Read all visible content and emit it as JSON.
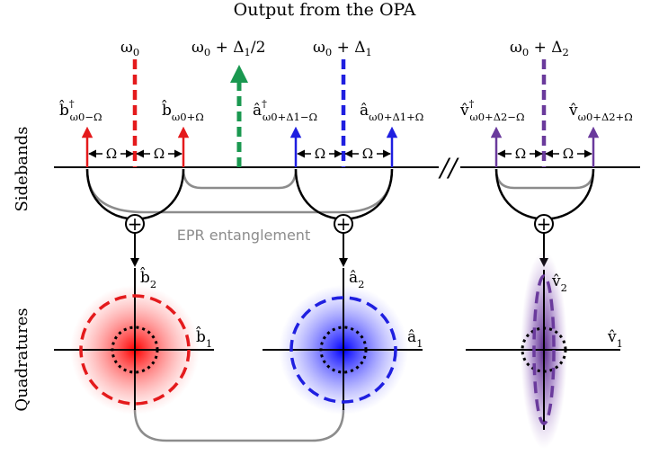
{
  "title": "Output from the OPA",
  "row_labels": {
    "sidebands": "Sidebands",
    "quadratures": "Quadratures"
  },
  "top_labels": {
    "w0": "ω",
    "w0_sub": "0",
    "mid_main": "ω",
    "mid_sub": "0",
    "mid_rest": " + Δ",
    "mid_sub2": "1",
    "mid_tail": "/2",
    "d1_main": "ω",
    "d1_sub": "0",
    "d1_rest": " + Δ",
    "d1_sub2": "1",
    "d2_main": "ω",
    "d2_sub": "0",
    "d2_rest": " + Δ",
    "d2_sub2": "2"
  },
  "operators": {
    "b_dag": {
      "symbol": "b̂",
      "sup": "†",
      "sub": "ω0−Ω"
    },
    "b": {
      "symbol": "b̂",
      "sup": "",
      "sub": "ω0+Ω"
    },
    "a_dag": {
      "symbol": "â",
      "sup": "†",
      "sub": "ω0+Δ1−Ω"
    },
    "a": {
      "symbol": "â",
      "sup": "",
      "sub": "ω0+Δ1+Ω"
    },
    "v_dag": {
      "symbol": "v̂",
      "sup": "†",
      "sub": "ω0+Δ2−Ω"
    },
    "v": {
      "symbol": "v̂",
      "sup": "",
      "sub": "ω0+Δ2+Ω"
    }
  },
  "omega_label": "Ω",
  "plus_symbol": "+",
  "break_symbol": "//",
  "epr_label": "EPR entanglement",
  "quadrature_axes": {
    "b2": {
      "symbol": "b̂",
      "sub": "2"
    },
    "b1": {
      "symbol": "b̂",
      "sub": "1"
    },
    "a2": {
      "symbol": "â",
      "sub": "2"
    },
    "a1": {
      "symbol": "â",
      "sub": "1"
    },
    "v2": {
      "symbol": "v̂",
      "sub": "2"
    },
    "v1": {
      "symbol": "v̂",
      "sub": "1"
    }
  },
  "colors": {
    "red": "#e41a1c",
    "green": "#1a9850",
    "blue": "#1f1fe0",
    "purple": "#6a3a9c",
    "gray": "#8c8c8c",
    "black": "#000000"
  }
}
